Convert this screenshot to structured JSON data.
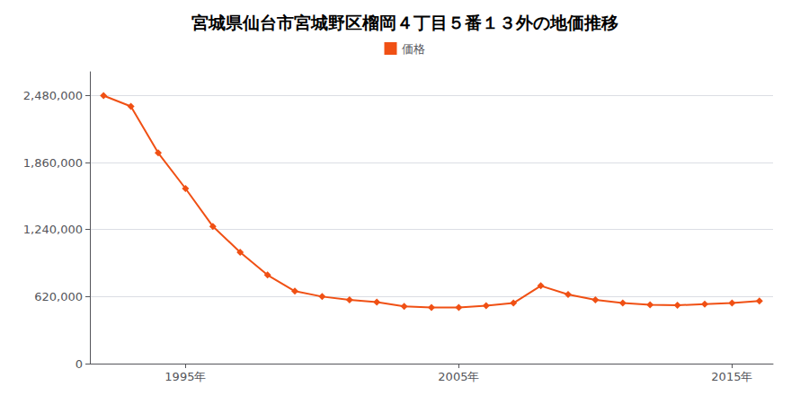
{
  "chart_data": {
    "type": "line",
    "title": "宮城県仙台市宮城野区榴岡４丁目５番１３外の地価推移",
    "x": [
      1992,
      1993,
      1994,
      1995,
      1996,
      1997,
      1998,
      1999,
      2000,
      2001,
      2002,
      2003,
      2004,
      2005,
      2006,
      2007,
      2008,
      2009,
      2010,
      2011,
      2012,
      2013,
      2014,
      2015,
      2016
    ],
    "series": [
      {
        "name": "価格",
        "color": "#f05014",
        "marker": "diamond",
        "values": [
          2480000,
          2380000,
          1950000,
          1620000,
          1270000,
          1030000,
          820000,
          670000,
          620000,
          590000,
          570000,
          530000,
          520000,
          520000,
          535000,
          560000,
          720000,
          640000,
          590000,
          560000,
          545000,
          540000,
          550000,
          560000,
          580000
        ]
      }
    ],
    "xlim": [
      1991.5,
      2016.5
    ],
    "xticks": [
      {
        "value": 1995,
        "label": "1995年"
      },
      {
        "value": 2005,
        "label": "2005年"
      },
      {
        "value": 2015,
        "label": "2015年"
      }
    ],
    "ylim": [
      0,
      2700000
    ],
    "yticks": [
      0,
      {
        "value": 620000,
        "label": "620,000"
      },
      {
        "value": 1240000,
        "label": "1,240,000"
      },
      {
        "value": 1860000,
        "label": "1,860,000"
      },
      {
        "value": 2480000,
        "label": "2,480,000"
      }
    ],
    "grid": true,
    "legend": "top"
  }
}
